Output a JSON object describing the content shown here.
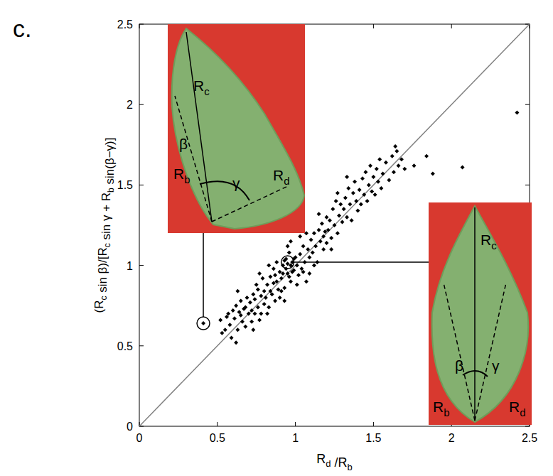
{
  "chart_data": {
    "type": "scatter",
    "panel_label": "c.",
    "x_label": "Rd /Rb",
    "y_label": "(Rc sin β)/[Rc sin γ + Rb sin(β−γ)]",
    "xlim": [
      0,
      2.5
    ],
    "ylim": [
      0,
      2.5
    ],
    "xticks": [
      0,
      0.5,
      1,
      1.5,
      2,
      2.5
    ],
    "yticks": [
      0,
      0.5,
      1,
      1.5,
      2,
      2.5
    ],
    "color": "#000000",
    "marker": "diamond",
    "grid": false,
    "diagonal": {
      "x": [
        0,
        2.5
      ],
      "values": [
        0,
        2.5
      ],
      "color": "#808080"
    },
    "x": [
      0.41,
      0.52,
      0.55,
      0.57,
      0.58,
      0.6,
      0.53,
      0.59,
      0.56,
      0.61,
      0.62,
      0.63,
      0.64,
      0.65,
      0.66,
      0.67,
      0.68,
      0.69,
      0.62,
      0.65,
      0.68,
      0.7,
      0.63,
      0.71,
      0.72,
      0.73,
      0.74,
      0.75,
      0.76,
      0.77,
      0.78,
      0.79,
      0.8,
      0.72,
      0.74,
      0.76,
      0.78,
      0.8,
      0.73,
      0.77,
      0.81,
      0.82,
      0.83,
      0.84,
      0.85,
      0.86,
      0.87,
      0.88,
      0.89,
      0.9,
      0.82,
      0.84,
      0.86,
      0.88,
      0.9,
      0.83,
      0.87,
      0.91,
      0.92,
      0.93,
      0.94,
      0.95,
      0.96,
      0.97,
      0.98,
      0.99,
      1.0,
      0.92,
      0.93,
      0.94,
      0.95,
      0.96,
      0.97,
      0.98,
      0.99,
      0.91,
      0.95,
      0.97,
      0.93,
      1.01,
      1.02,
      1.03,
      1.04,
      1.05,
      1.06,
      1.07,
      1.08,
      1.09,
      1.1,
      1.01,
      1.03,
      1.05,
      1.07,
      1.09,
      1.11,
      1.12,
      1.13,
      1.14,
      1.15,
      1.16,
      1.17,
      1.18,
      1.19,
      1.2,
      1.12,
      1.15,
      1.18,
      1.2,
      1.21,
      1.22,
      1.23,
      1.24,
      1.25,
      1.26,
      1.27,
      1.28,
      1.29,
      1.3,
      1.23,
      1.27,
      1.31,
      1.32,
      1.33,
      1.34,
      1.35,
      1.36,
      1.37,
      1.38,
      1.39,
      1.4,
      1.33,
      1.41,
      1.42,
      1.43,
      1.44,
      1.45,
      1.46,
      1.47,
      1.48,
      1.49,
      1.5,
      1.51,
      1.52,
      1.53,
      1.54,
      1.55,
      1.56,
      1.58,
      1.6,
      1.62,
      1.63,
      1.65,
      1.66,
      1.68,
      1.7,
      1.64,
      1.76,
      1.84,
      2.07,
      2.42,
      1.88
    ],
    "values": [
      0.64,
      0.66,
      0.6,
      0.7,
      0.63,
      0.72,
      0.58,
      0.55,
      0.68,
      0.67,
      0.75,
      0.6,
      0.71,
      0.78,
      0.65,
      0.73,
      0.62,
      0.8,
      0.52,
      0.69,
      0.74,
      0.7,
      0.84,
      0.77,
      0.65,
      0.82,
      0.7,
      0.88,
      0.74,
      0.66,
      0.81,
      0.92,
      0.76,
      0.72,
      0.79,
      0.85,
      0.7,
      0.84,
      0.6,
      0.95,
      0.8,
      0.88,
      0.74,
      0.93,
      0.82,
      0.98,
      0.78,
      0.9,
      0.85,
      0.96,
      0.7,
      0.84,
      0.89,
      1.02,
      0.8,
      1.0,
      0.94,
      0.92,
      1.0,
      0.86,
      1.04,
      0.95,
      1.08,
      0.9,
      1.02,
      0.97,
      1.05,
      0.95,
      1.03,
      0.98,
      1.01,
      0.93,
      1.0,
      0.96,
      1.04,
      0.84,
      1.12,
      1.15,
      0.78,
      1.0,
      0.94,
      1.07,
      0.98,
      1.12,
      1.02,
      0.9,
      1.1,
      1.05,
      1.16,
      0.88,
      1.18,
      0.96,
      1.2,
      0.95,
      1.08,
      1.2,
      1.12,
      1.02,
      1.22,
      1.15,
      1.26,
      1.1,
      1.21,
      1.3,
      1.0,
      1.32,
      1.18,
      1.14,
      1.22,
      1.28,
      1.17,
      1.35,
      1.25,
      1.4,
      1.2,
      1.31,
      1.38,
      1.27,
      1.1,
      1.45,
      1.35,
      1.42,
      1.3,
      1.48,
      1.38,
      1.28,
      1.45,
      1.52,
      1.4,
      1.34,
      1.55,
      1.47,
      1.38,
      1.54,
      1.44,
      1.58,
      1.4,
      1.5,
      1.62,
      1.46,
      1.55,
      1.44,
      1.6,
      1.52,
      1.66,
      1.48,
      1.57,
      1.64,
      1.53,
      1.68,
      1.58,
      1.71,
      1.62,
      1.66,
      1.6,
      1.74,
      1.62,
      1.68,
      1.61,
      1.95,
      1.57
    ],
    "insets": [
      {
        "x": 0.41,
        "y": 0.64,
        "labels": [
          "Rc",
          "β",
          "Rb",
          "γ",
          "Rd"
        ]
      },
      {
        "x": 0.95,
        "y": 1.02,
        "labels": [
          "Rc",
          "β",
          "Rb",
          "γ",
          "Rd"
        ]
      }
    ]
  }
}
